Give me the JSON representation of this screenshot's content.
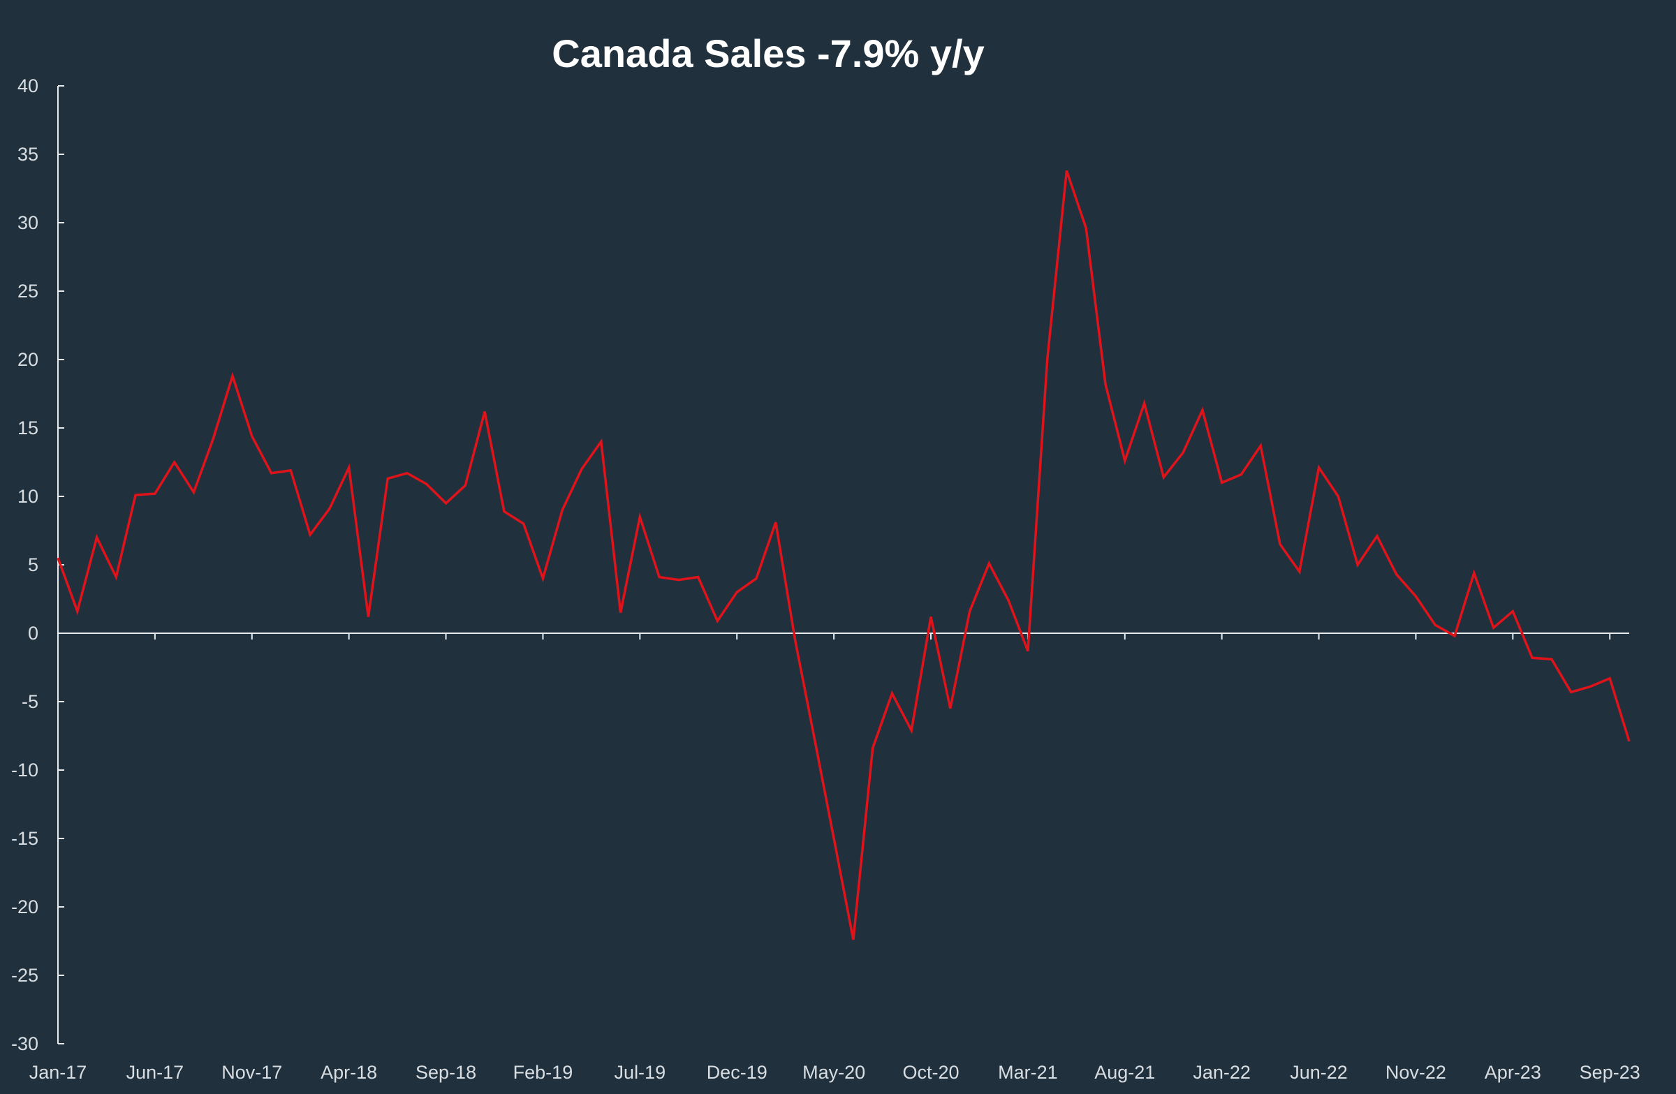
{
  "chart_data": {
    "type": "line",
    "title": "Canada Sales -7.9% y/y",
    "xlabel": "",
    "ylabel": "",
    "ylim": [
      -30,
      40
    ],
    "yticks": [
      40,
      35,
      30,
      25,
      20,
      15,
      10,
      5,
      0,
      -5,
      -10,
      -15,
      -20,
      -25,
      -30
    ],
    "x_start": "Jan-17",
    "x_end": "Sep-23",
    "x_tick_labels": [
      "Jan-17",
      "Jun-17",
      "Nov-17",
      "Apr-18",
      "Sep-18",
      "Feb-19",
      "Jul-19",
      "Dec-19",
      "May-20",
      "Oct-20",
      "Mar-21",
      "Aug-21",
      "Jan-22",
      "Jun-22",
      "Nov-22",
      "Apr-23",
      "Sep-23"
    ],
    "grid": false,
    "legend": "none",
    "line_color": "#e0131b",
    "series": [
      {
        "values": [
          5.5,
          1.6,
          7.0,
          4.1,
          10.1,
          10.2,
          12.5,
          10.3,
          14.2,
          18.8,
          14.4,
          11.7,
          11.9,
          7.2,
          9.1,
          12.1,
          1.2,
          11.3,
          11.7,
          10.9,
          9.5,
          10.8,
          16.2,
          8.9,
          8.0,
          4.0,
          9.0,
          12.0,
          14.0,
          1.5,
          8.5,
          4.1,
          3.9,
          4.1,
          0.9,
          3.0,
          4.0,
          8.1,
          -0.5,
          -7.7,
          -15.0,
          -22.4,
          -8.4,
          -4.4,
          -7.1,
          1.2,
          -5.5,
          1.6,
          5.1,
          2.4,
          -1.3,
          20.0,
          33.8,
          29.6,
          18.2,
          12.6,
          16.8,
          11.4,
          13.2,
          16.3,
          11.0,
          11.6,
          13.7,
          6.5,
          4.5,
          12.1,
          10.0,
          5.0,
          7.1,
          4.3,
          2.7,
          0.6,
          -0.2,
          4.4,
          0.4,
          1.6,
          -1.8,
          -1.9,
          -4.3,
          -3.9,
          -3.3,
          -7.9
        ]
      }
    ]
  }
}
